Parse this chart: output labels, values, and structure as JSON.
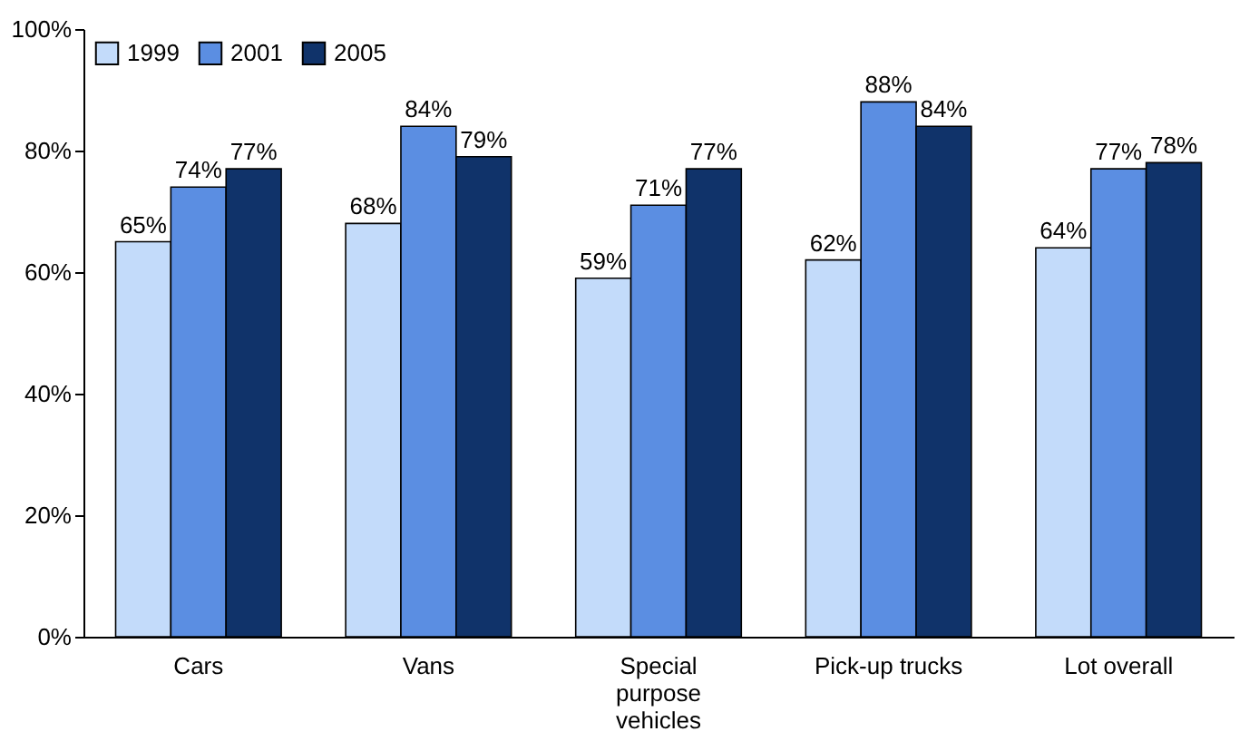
{
  "chart_data": {
    "type": "bar",
    "categories": [
      "Cars",
      "Vans",
      "Special purpose vehicles",
      "Pick-up trucks",
      "Lot overall"
    ],
    "series": [
      {
        "name": "1999",
        "color": "#c3dbfa",
        "values": [
          65,
          68,
          59,
          62,
          64
        ],
        "value_labels": [
          "65%",
          "68%",
          "59%",
          "62%",
          "64%"
        ]
      },
      {
        "name": "2001",
        "color": "#5b8ee2",
        "values": [
          74,
          84,
          71,
          88,
          77
        ],
        "value_labels": [
          "74%",
          "84%",
          "71%",
          "88%",
          "77%"
        ]
      },
      {
        "name": "2005",
        "color": "#10336a",
        "values": [
          77,
          79,
          77,
          84,
          78
        ],
        "value_labels": [
          "77%",
          "79%",
          "77%",
          "84%",
          "78%"
        ]
      }
    ],
    "ylim": [
      0,
      100
    ],
    "yticks": [
      {
        "value": 0,
        "label": "0%"
      },
      {
        "value": 20,
        "label": "20%"
      },
      {
        "value": 40,
        "label": "40%"
      },
      {
        "value": 60,
        "label": "60%"
      },
      {
        "value": 80,
        "label": "80%"
      },
      {
        "value": 100,
        "label": "100%"
      }
    ],
    "grid": false,
    "legend": "top left"
  }
}
